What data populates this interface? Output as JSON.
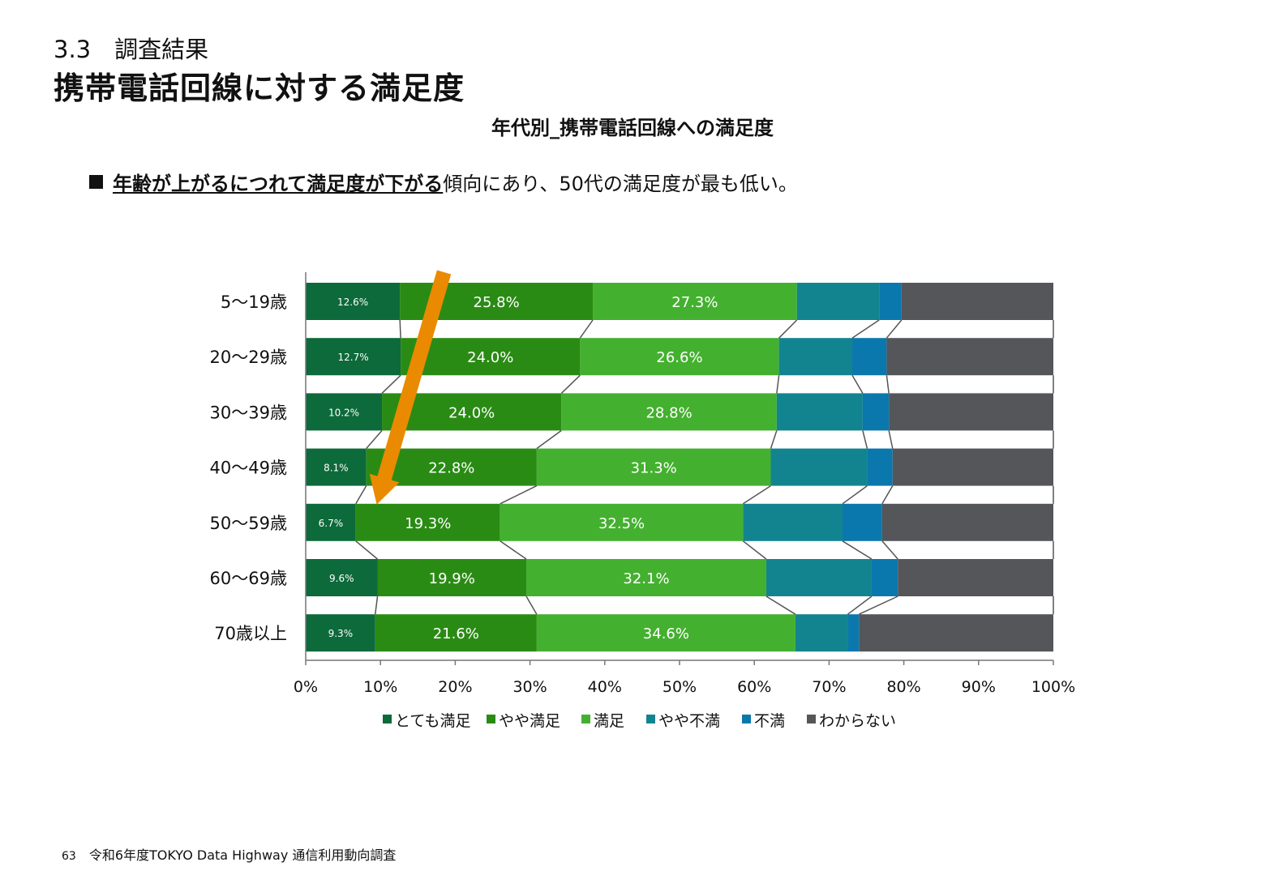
{
  "header": {
    "section": "3.3　調査結果",
    "title": "携帯電話回線に対する満足度"
  },
  "summary": {
    "emphasis": "年齢が上がるにつれて満足度が下がる",
    "rest": "傾向にあり、50代の満足度が最も低い。"
  },
  "chart_data": {
    "type": "bar",
    "orientation": "horizontal",
    "stacked": "percent",
    "title": "年代別_携帯電話回線への満足度",
    "categories": [
      "5～19歳",
      "20～29歳",
      "30～39歳",
      "40～49歳",
      "50～59歳",
      "60～69歳",
      "70歳以上"
    ],
    "series": [
      {
        "name": "とても満足",
        "color": "#0d6a3a",
        "values": [
          12.6,
          12.7,
          10.2,
          8.1,
          6.7,
          9.6,
          9.3
        ],
        "labels": [
          "12.6%",
          "12.7%",
          "10.2%",
          "8.1%",
          "6.7%",
          "9.6%",
          "9.3%"
        ]
      },
      {
        "name": "やや満足",
        "color": "#2a8b14",
        "values": [
          25.8,
          24.0,
          24.0,
          22.8,
          19.3,
          19.9,
          21.6
        ],
        "labels": [
          "25.8%",
          "24.0%",
          "24.0%",
          "22.8%",
          "19.3%",
          "19.9%",
          "21.6%"
        ]
      },
      {
        "name": "満足",
        "color": "#44b02f",
        "values": [
          27.3,
          26.6,
          28.8,
          31.3,
          32.5,
          32.1,
          34.6
        ],
        "labels": [
          "27.3%",
          "26.6%",
          "28.8%",
          "31.3%",
          "32.5%",
          "32.1%",
          "34.6%"
        ]
      },
      {
        "name": "やや不満",
        "color": "#12848f",
        "values": [
          11.0,
          9.8,
          11.5,
          12.9,
          13.3,
          14.1,
          7.0
        ]
      },
      {
        "name": "不満",
        "color": "#0a78ad",
        "values": [
          3.0,
          4.6,
          3.5,
          3.4,
          5.3,
          3.5,
          1.5
        ]
      },
      {
        "name": "わからない",
        "color": "#54565a",
        "values": [
          20.3,
          22.3,
          22.0,
          21.5,
          22.9,
          20.8,
          26.0
        ]
      }
    ],
    "xlim": [
      0,
      100
    ],
    "xticks": [
      "0%",
      "10%",
      "20%",
      "30%",
      "40%",
      "50%",
      "60%",
      "70%",
      "80%",
      "90%",
      "100%"
    ],
    "legend_position": "bottom",
    "series_lines": true,
    "annotation": {
      "type": "arrow",
      "color": "#ea8a00",
      "from": {
        "category": "5～19歳",
        "x": 18.5
      },
      "to": {
        "category": "50～59歳",
        "x": 9.5
      }
    }
  },
  "footer": {
    "page": "63",
    "text": "令和6年度TOKYO Data Highway 通信利用動向調査"
  }
}
